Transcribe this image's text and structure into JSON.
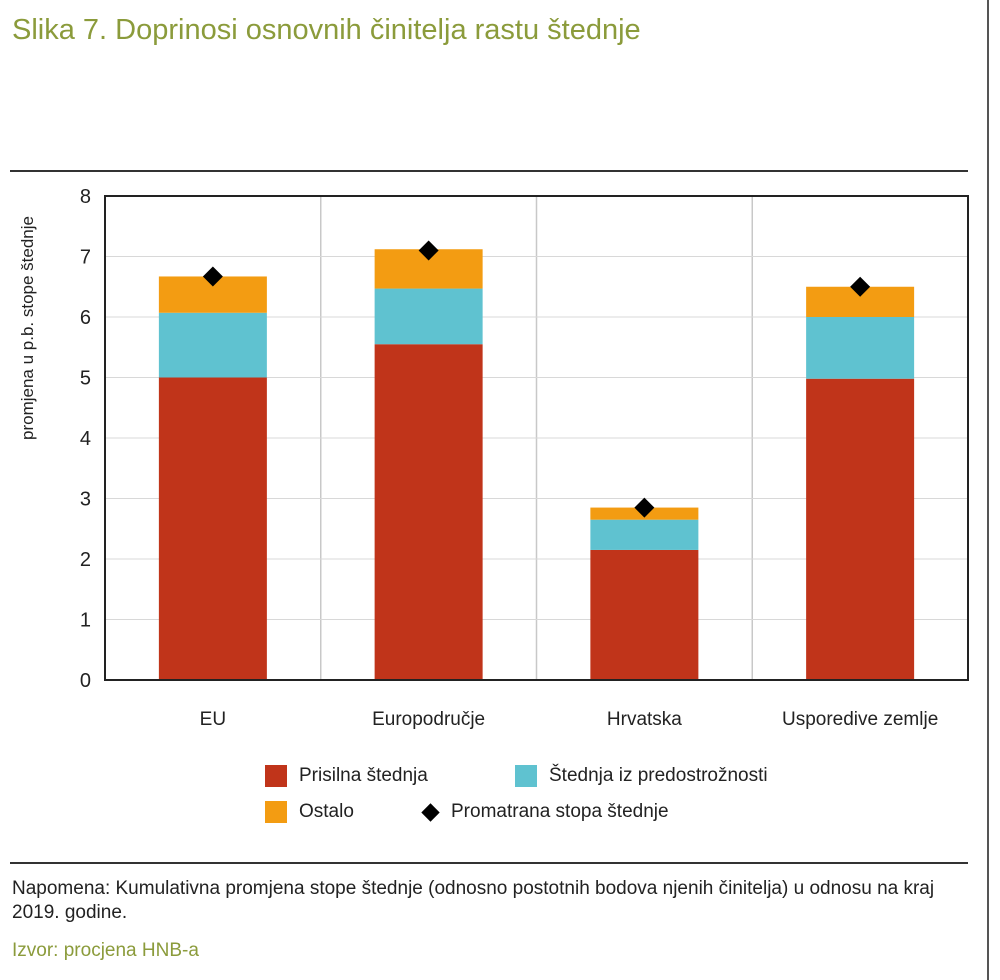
{
  "title": "Slika 7. Doprinosi osnovnih činitelja rastu štednje",
  "note": "Napomena: Kumulativna promjena stope štednje (odnosno postotnih bodova njenih činitelja) u odnosu na kraj 2019. godine.",
  "source": "Izvor: procjena HNB-a",
  "colors": {
    "prisilna": "#c0341a",
    "predostroznost": "#5fc2d0",
    "ostalo": "#f39c12",
    "marker": "#000000"
  },
  "chart_data": {
    "type": "bar",
    "stacked": true,
    "ylabel": "promjena u p.b. stope štednje",
    "ylim": [
      0,
      8
    ],
    "yticks": [
      "0",
      "1",
      "2",
      "3",
      "4",
      "5",
      "6",
      "7",
      "8"
    ],
    "categories": [
      "EU",
      "Europodručje",
      "Hrvatska",
      "Usporedive zemlje"
    ],
    "series": [
      {
        "name": "Prisilna štednja",
        "values": [
          5.0,
          5.55,
          2.15,
          4.98
        ]
      },
      {
        "name": "Štednja iz predostrožnosti",
        "values": [
          1.07,
          0.92,
          0.5,
          1.02
        ]
      },
      {
        "name": "Ostalo",
        "values": [
          0.6,
          0.65,
          0.2,
          0.5
        ]
      }
    ],
    "markers": {
      "name": "Promatrana stopa štednje",
      "values": [
        6.67,
        7.1,
        2.85,
        6.5
      ]
    },
    "grid": true,
    "legend_position": "bottom"
  }
}
